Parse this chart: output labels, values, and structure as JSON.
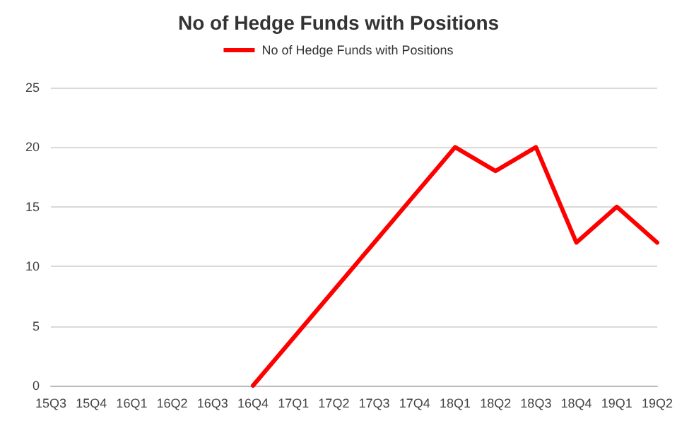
{
  "chart_data": {
    "type": "line",
    "title": "No of Hedge Funds with Positions",
    "categories": [
      "15Q3",
      "15Q4",
      "16Q1",
      "16Q2",
      "16Q3",
      "16Q4",
      "17Q1",
      "17Q2",
      "17Q3",
      "17Q4",
      "18Q1",
      "18Q2",
      "18Q3",
      "18Q4",
      "19Q1",
      "19Q2"
    ],
    "series": [
      {
        "name": "No of Hedge Funds with Positions",
        "color": "#ff0000",
        "values": [
          null,
          null,
          null,
          null,
          null,
          0,
          4,
          8,
          12,
          16,
          20,
          18,
          20,
          12,
          15,
          12
        ]
      }
    ],
    "ylim": [
      0,
      25
    ],
    "yticks": [
      0,
      5,
      10,
      15,
      20,
      25
    ],
    "grid": "y",
    "legend": "top",
    "marker": "none",
    "line_style": "solid"
  }
}
